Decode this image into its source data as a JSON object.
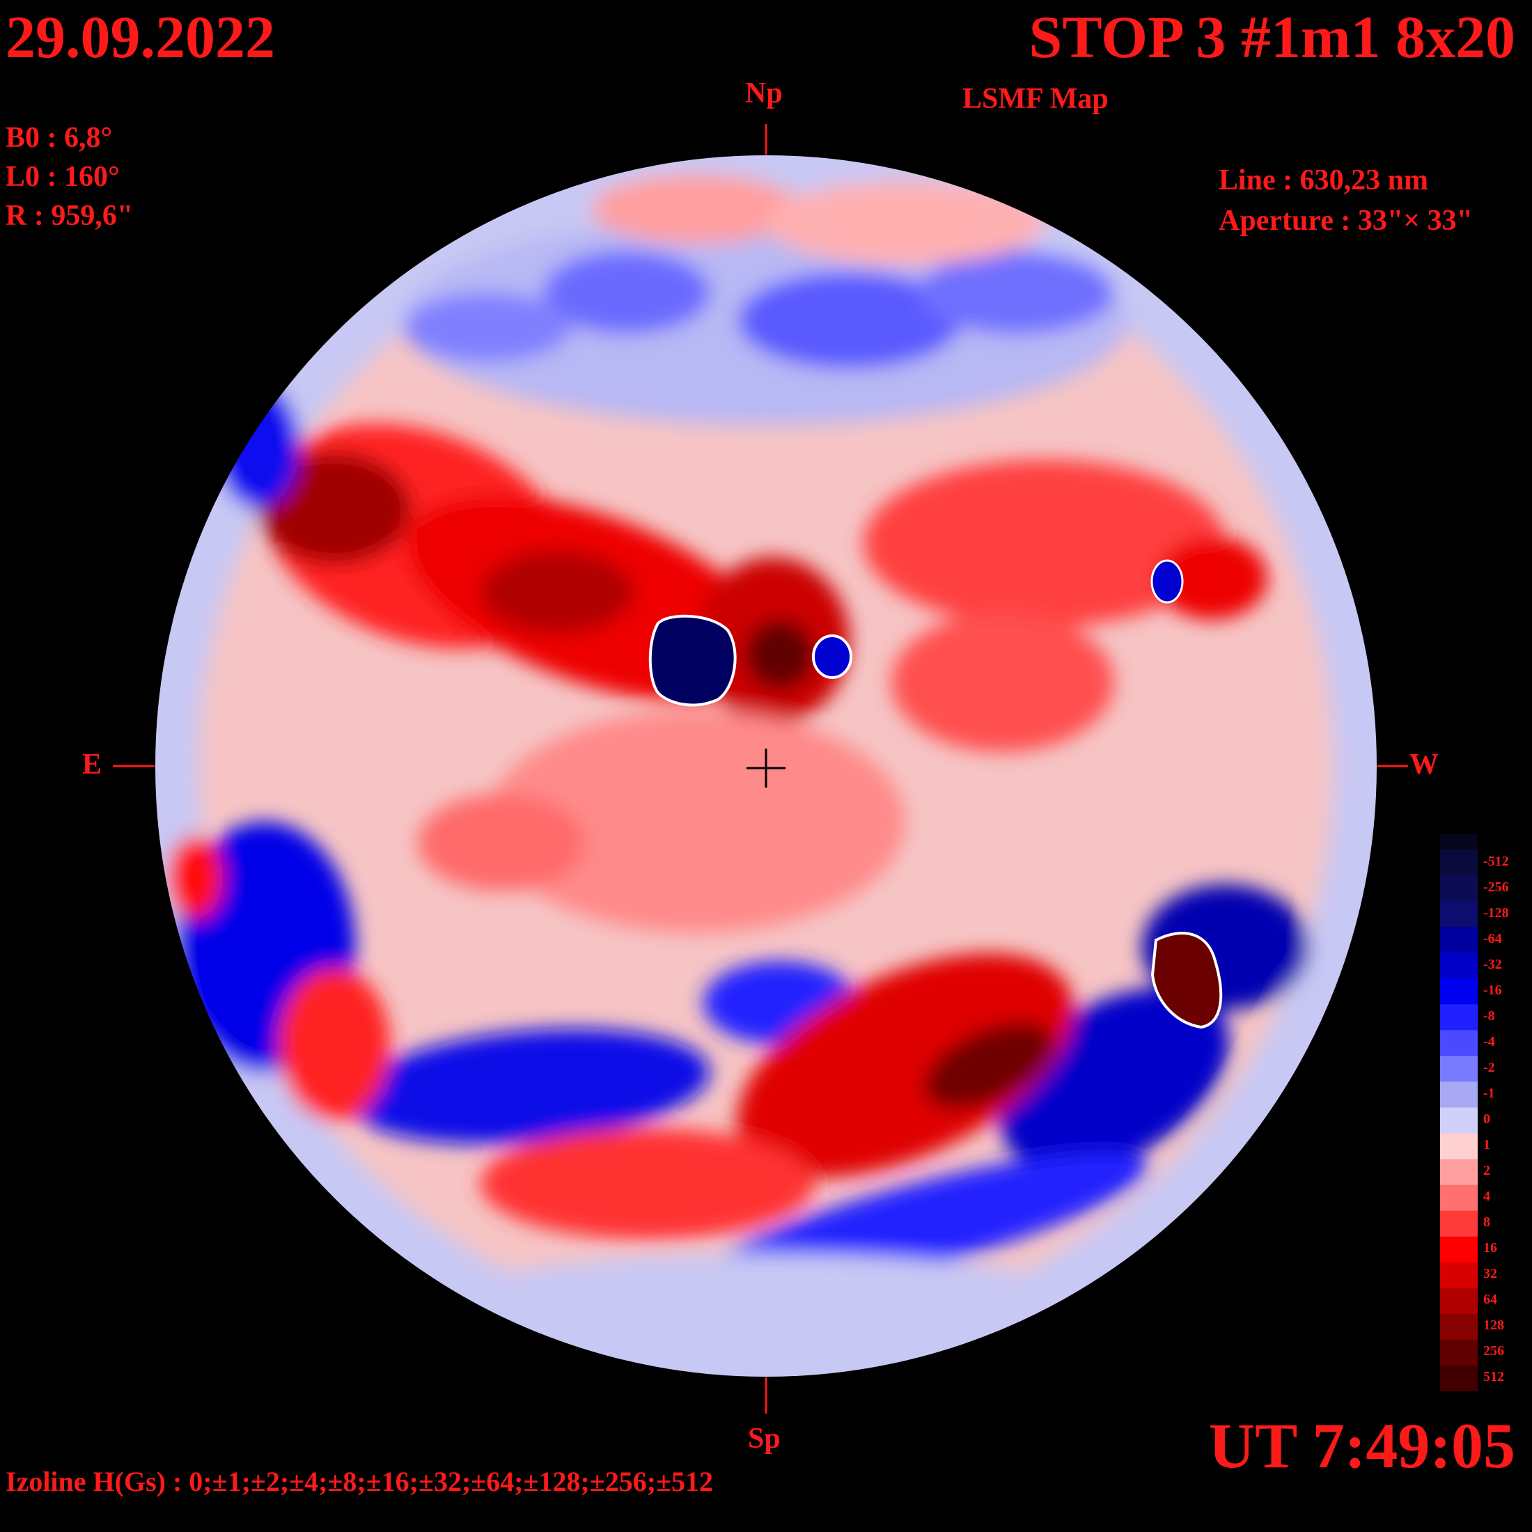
{
  "header": {
    "date": "29.09.2022",
    "title": "STOP 3 #1m1 8x20",
    "subtitle": "LSMF  Map"
  },
  "params": {
    "b0": "B0 : 6,8°",
    "l0": "L0 : 160°",
    "r": "R  : 959,6\""
  },
  "instrument": {
    "line": "Line :  630,23 nm",
    "aperture": "Aperture : 33\"× 33\""
  },
  "directions": {
    "north": "Np",
    "south": "Sp",
    "east": "E",
    "west": "W"
  },
  "time": "UT 7:49:05",
  "izoline": "Izoline H(Gs) : 0;±1;±2;±4;±8;±16;±32;±64;±128;±256;±512",
  "colorbar": {
    "labels": [
      "-512",
      "-256",
      "-128",
      "-64",
      "-32",
      "-16",
      "-8",
      "-4",
      "-2",
      "-1",
      "0",
      "1",
      "2",
      "4",
      "8",
      "16",
      "32",
      "64",
      "128",
      "256",
      "512"
    ],
    "colors": [
      "#0a0a3c",
      "#0c0c55",
      "#0d0d70",
      "#0000a0",
      "#0000c8",
      "#0000f0",
      "#2020ff",
      "#4a4aff",
      "#7a7aff",
      "#a8a8f5",
      "#d0d0f8",
      "#ffd0d0",
      "#ff9f9f",
      "#ff7070",
      "#ff3a3a",
      "#ff0000",
      "#d80000",
      "#b00000",
      "#880000",
      "#600000",
      "#420000"
    ]
  },
  "map_colors": {
    "background": "#000000",
    "disk_base": "#ffc8c8",
    "negative": "#0000e0",
    "positive": "#ee0000"
  }
}
